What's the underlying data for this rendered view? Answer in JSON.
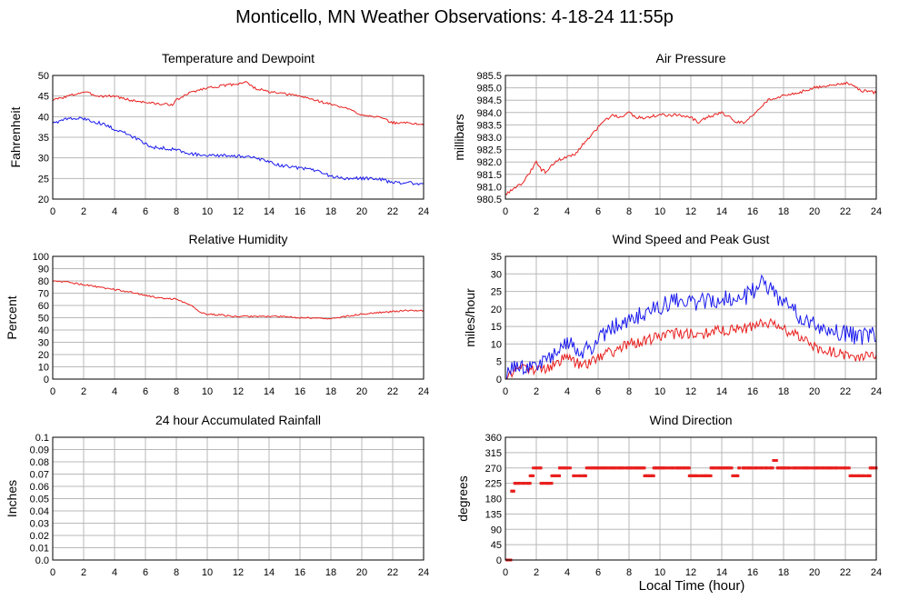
{
  "page": {
    "title": "Monticello, MN Weather Observations: 4-18-24 11:55p",
    "x_caption": "Local Time (hour)"
  },
  "colors": {
    "red": "#e8201e",
    "blue": "#1a1aee",
    "grid": "#b8b8b8",
    "frame": "#000000"
  },
  "chart_data": [
    {
      "id": "temp",
      "type": "line",
      "title": "Temperature and Dewpoint",
      "xlabel": "",
      "ylabel": "Fahrenheit",
      "xlim": [
        0,
        24
      ],
      "ylim": [
        20,
        50
      ],
      "yticks": [
        20,
        25,
        30,
        35,
        40,
        45,
        50
      ],
      "ytick_labels": [
        "20",
        "25",
        "30",
        "35",
        "40",
        "45",
        "50"
      ],
      "xticks": [
        0,
        2,
        4,
        6,
        8,
        10,
        12,
        14,
        16,
        18,
        20,
        22,
        24
      ],
      "grid": true,
      "series": [
        {
          "color": "red",
          "noise": 0.3,
          "x": [
            0,
            1,
            2,
            2.5,
            3,
            4,
            5,
            6,
            7,
            7.8,
            8,
            9,
            10,
            11,
            12,
            12.5,
            13,
            14,
            15,
            16,
            17,
            18,
            19,
            20,
            21,
            22,
            23,
            24
          ],
          "y": [
            44,
            45,
            46,
            45.5,
            45,
            45,
            44,
            43.5,
            43,
            43,
            44,
            46,
            47,
            47.5,
            48,
            48.5,
            47,
            46,
            45.5,
            45,
            44,
            43,
            42,
            40.5,
            40,
            38.5,
            38.5,
            38
          ]
        },
        {
          "color": "blue",
          "noise": 0.4,
          "x": [
            0,
            1,
            2,
            3,
            4,
            5,
            6,
            6.5,
            7,
            8,
            9,
            10,
            11,
            12,
            13,
            14,
            15,
            16,
            17,
            18,
            19,
            20,
            21,
            22,
            23,
            24
          ],
          "y": [
            38.5,
            39.5,
            39.5,
            38.5,
            37,
            35.5,
            33.5,
            32.5,
            32.5,
            32,
            31,
            30.5,
            30.5,
            30.5,
            30,
            29,
            28,
            27.5,
            27,
            25.5,
            25,
            25,
            25,
            24,
            24,
            23.5
          ]
        }
      ]
    },
    {
      "id": "pressure",
      "type": "line",
      "title": "Air Pressure",
      "xlabel": "",
      "ylabel": "millibars",
      "xlim": [
        0,
        24
      ],
      "ylim": [
        980.5,
        985.5
      ],
      "yticks": [
        980.5,
        981.0,
        981.5,
        982.0,
        982.5,
        983.0,
        983.5,
        984.0,
        984.5,
        985.0,
        985.5
      ],
      "ytick_labels": [
        "980.5",
        "981.0",
        "981.5",
        "982.0",
        "982.5",
        "983.0",
        "983.5",
        "984.0",
        "984.5",
        "985.0",
        "985.5"
      ],
      "xticks": [
        0,
        2,
        4,
        6,
        8,
        10,
        12,
        14,
        16,
        18,
        20,
        22,
        24
      ],
      "grid": true,
      "series": [
        {
          "color": "red",
          "noise": 0.06,
          "x": [
            0,
            0.5,
            1,
            1.5,
            2,
            2.3,
            2.6,
            3,
            3.5,
            4,
            4.5,
            5,
            5.5,
            6,
            6.5,
            7,
            7.5,
            8,
            8.5,
            9,
            10,
            11,
            12,
            12.5,
            13,
            14,
            15,
            15.5,
            16,
            17,
            18,
            19,
            20,
            21,
            22,
            22.5,
            23,
            24
          ],
          "y": [
            980.7,
            980.9,
            981.1,
            981.5,
            982.0,
            981.7,
            981.6,
            981.9,
            982.1,
            982.2,
            982.3,
            982.7,
            983.0,
            983.4,
            983.7,
            983.9,
            983.8,
            984.0,
            983.8,
            983.8,
            983.9,
            983.9,
            983.8,
            983.6,
            983.8,
            984.0,
            983.6,
            983.6,
            983.9,
            984.5,
            984.7,
            984.8,
            985.0,
            985.1,
            985.2,
            985.1,
            984.9,
            984.8
          ]
        }
      ]
    },
    {
      "id": "humidity",
      "type": "line",
      "title": "Relative Humidity",
      "xlabel": "",
      "ylabel": "Percent",
      "xlim": [
        0,
        24
      ],
      "ylim": [
        0,
        100
      ],
      "yticks": [
        0,
        10,
        20,
        30,
        40,
        50,
        60,
        70,
        80,
        90,
        100
      ],
      "ytick_labels": [
        "0",
        "10",
        "20",
        "30",
        "40",
        "50",
        "60",
        "70",
        "80",
        "90",
        "100"
      ],
      "xticks": [
        0,
        2,
        4,
        6,
        8,
        10,
        12,
        14,
        16,
        18,
        20,
        22,
        24
      ],
      "grid": true,
      "series": [
        {
          "color": "red",
          "noise": 0.7,
          "x": [
            0,
            1,
            2,
            3,
            4,
            5,
            6,
            7,
            8,
            9,
            9.5,
            10,
            11,
            12,
            13,
            14,
            15,
            16,
            17,
            18,
            19,
            20,
            21,
            22,
            23,
            24
          ],
          "y": [
            80,
            79,
            77,
            75,
            73,
            71,
            68,
            66,
            65,
            60,
            55,
            53,
            52,
            51,
            51,
            51,
            51,
            50,
            50,
            49,
            51,
            53,
            54,
            55,
            56,
            56
          ]
        }
      ]
    },
    {
      "id": "wind",
      "type": "line",
      "title": "Wind Speed and Peak Gust",
      "xlabel": "",
      "ylabel": "miles/hour",
      "xlim": [
        0,
        24
      ],
      "ylim": [
        0,
        35
      ],
      "yticks": [
        0,
        5,
        10,
        15,
        20,
        25,
        30,
        35
      ],
      "ytick_labels": [
        "0",
        "5",
        "10",
        "15",
        "20",
        "25",
        "30",
        "35"
      ],
      "xticks": [
        0,
        2,
        4,
        6,
        8,
        10,
        12,
        14,
        16,
        18,
        20,
        22,
        24
      ],
      "grid": true,
      "series": [
        {
          "color": "red",
          "noise": 1.6,
          "x": [
            0,
            0.5,
            1,
            1.5,
            2,
            2.5,
            3,
            3.5,
            4,
            4.5,
            5,
            6,
            7,
            8,
            9,
            10,
            11,
            12,
            13,
            14,
            15,
            16,
            16.5,
            17,
            18,
            19,
            20,
            21,
            22,
            23,
            24
          ],
          "y": [
            0,
            2,
            3,
            3,
            2,
            3,
            4,
            5,
            6,
            5,
            4,
            6,
            8,
            10,
            11,
            12,
            13,
            13,
            13,
            14,
            14,
            15,
            17,
            16,
            14,
            12,
            9,
            8,
            7,
            6,
            7
          ]
        },
        {
          "color": "blue",
          "noise": 2.6,
          "x": [
            0,
            0.5,
            1,
            1.5,
            2,
            2.5,
            3,
            3.5,
            4,
            4.5,
            5,
            5.5,
            6,
            7,
            8,
            9,
            10,
            11,
            12,
            13,
            14,
            15,
            16,
            16.7,
            17,
            18,
            19,
            20,
            21,
            22,
            23,
            24
          ],
          "y": [
            0,
            3,
            4,
            4,
            4,
            5,
            6,
            9,
            11,
            9,
            8,
            9,
            12,
            15,
            17,
            19,
            21,
            22,
            22,
            22,
            23,
            22,
            25,
            29,
            26,
            22,
            18,
            15,
            14,
            13,
            12,
            13
          ]
        }
      ]
    },
    {
      "id": "rain",
      "type": "line",
      "title": "24 hour Accumulated Rainfall",
      "xlabel": "",
      "ylabel": "Inches",
      "xlim": [
        0,
        24
      ],
      "ylim": [
        0,
        0.1
      ],
      "yticks": [
        0,
        0.01,
        0.02,
        0.03,
        0.04,
        0.05,
        0.06,
        0.07,
        0.08,
        0.09,
        0.1
      ],
      "ytick_labels": [
        "0.0",
        "0.01",
        "0.02",
        "0.03",
        "0.04",
        "0.05",
        "0.06",
        "0.07",
        "0.08",
        "0.09",
        "0.1"
      ],
      "xticks": [
        0,
        2,
        4,
        6,
        8,
        10,
        12,
        14,
        16,
        18,
        20,
        22,
        24
      ],
      "grid": true,
      "series": [
        {
          "color": "red",
          "noise": 0,
          "x": [
            0,
            24
          ],
          "y": [
            0,
            0
          ]
        }
      ]
    },
    {
      "id": "direction",
      "type": "scatter",
      "title": "Wind Direction",
      "xlabel": "Local Time (hour)",
      "ylabel": "degrees",
      "xlim": [
        0,
        24
      ],
      "ylim": [
        0,
        360
      ],
      "yticks": [
        0,
        45,
        90,
        135,
        180,
        225,
        270,
        315,
        360
      ],
      "ytick_labels": [
        "0",
        "45",
        "90",
        "135",
        "180",
        "225",
        "270",
        "315",
        "360"
      ],
      "xticks": [
        0,
        2,
        4,
        6,
        8,
        10,
        12,
        14,
        16,
        18,
        20,
        22,
        24
      ],
      "grid": true,
      "series": [
        {
          "color": "red",
          "segments": [
            {
              "x0": 0.0,
              "x1": 0.35,
              "y": 0
            },
            {
              "x0": 0.35,
              "x1": 0.6,
              "y": 202
            },
            {
              "x0": 0.6,
              "x1": 1.6,
              "y": 225
            },
            {
              "x0": 1.6,
              "x1": 1.8,
              "y": 247
            },
            {
              "x0": 1.8,
              "x1": 2.3,
              "y": 270
            },
            {
              "x0": 2.3,
              "x1": 3.0,
              "y": 225
            },
            {
              "x0": 3.0,
              "x1": 3.5,
              "y": 247
            },
            {
              "x0": 3.5,
              "x1": 4.3,
              "y": 270
            },
            {
              "x0": 4.3,
              "x1": 5.2,
              "y": 247
            },
            {
              "x0": 5.2,
              "x1": 9.0,
              "y": 270
            },
            {
              "x0": 9.0,
              "x1": 9.6,
              "y": 247
            },
            {
              "x0": 9.6,
              "x1": 11.9,
              "y": 270
            },
            {
              "x0": 11.9,
              "x1": 13.3,
              "y": 247
            },
            {
              "x0": 13.3,
              "x1": 14.7,
              "y": 270
            },
            {
              "x0": 14.7,
              "x1": 15.1,
              "y": 247
            },
            {
              "x0": 15.1,
              "x1": 17.3,
              "y": 270
            },
            {
              "x0": 17.3,
              "x1": 17.6,
              "y": 292
            },
            {
              "x0": 17.6,
              "x1": 22.3,
              "y": 270
            },
            {
              "x0": 22.3,
              "x1": 23.6,
              "y": 247
            },
            {
              "x0": 23.6,
              "x1": 24.0,
              "y": 270
            }
          ]
        }
      ]
    }
  ]
}
